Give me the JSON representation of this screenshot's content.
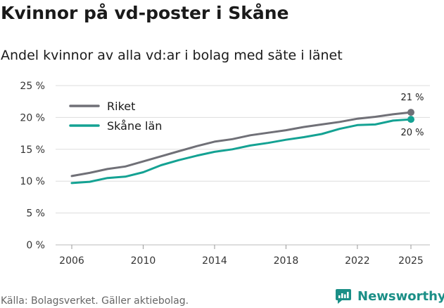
{
  "title": "Kvinnor på vd-poster i Skåne",
  "subtitle": "Andel kvinnor av alla vd:ar i bolag med säte i länet",
  "footer": {
    "source": "Källa: Bolagsverket. Gäller aktiebolag.",
    "brand": "Newsworthy"
  },
  "icons": {
    "brand": "bar-chart-logo-icon"
  },
  "colors": {
    "riket": "#707077",
    "skane": "#14a293",
    "grid": "#dddddd",
    "brand": "#1b8f87"
  },
  "chart_data": {
    "type": "line",
    "title": "Kvinnor på vd-poster i Skåne",
    "subtitle": "Andel kvinnor av alla vd:ar i bolag med säte i länet",
    "x": [
      2006,
      2007,
      2008,
      2009,
      2010,
      2011,
      2012,
      2013,
      2014,
      2015,
      2016,
      2017,
      2018,
      2019,
      2020,
      2021,
      2022,
      2023,
      2024,
      2025
    ],
    "xlim": [
      2006,
      2025
    ],
    "x_ticks": [
      2006,
      2010,
      2014,
      2018,
      2022,
      2025
    ],
    "y_ticks": [
      0,
      5,
      10,
      15,
      20,
      25
    ],
    "y_tick_labels": [
      "0 %",
      "5 %",
      "10 %",
      "15 %",
      "20 %",
      "25 %"
    ],
    "ylim": [
      0,
      25
    ],
    "grid": "horizontal",
    "legend": "top-left",
    "series": [
      {
        "name": "Riket",
        "color": "#707077",
        "values": [
          10.8,
          11.3,
          11.9,
          12.3,
          13.1,
          13.9,
          14.7,
          15.5,
          16.2,
          16.6,
          17.2,
          17.6,
          18.0,
          18.5,
          18.9,
          19.3,
          19.8,
          20.1,
          20.5,
          20.8
        ],
        "end_label": "21 %"
      },
      {
        "name": "Skåne län",
        "color": "#14a293",
        "values": [
          9.7,
          9.9,
          10.5,
          10.7,
          11.4,
          12.5,
          13.3,
          14.0,
          14.6,
          15.0,
          15.6,
          16.0,
          16.5,
          16.9,
          17.4,
          18.2,
          18.8,
          18.9,
          19.5,
          19.7
        ],
        "end_label": "20 %"
      }
    ]
  }
}
